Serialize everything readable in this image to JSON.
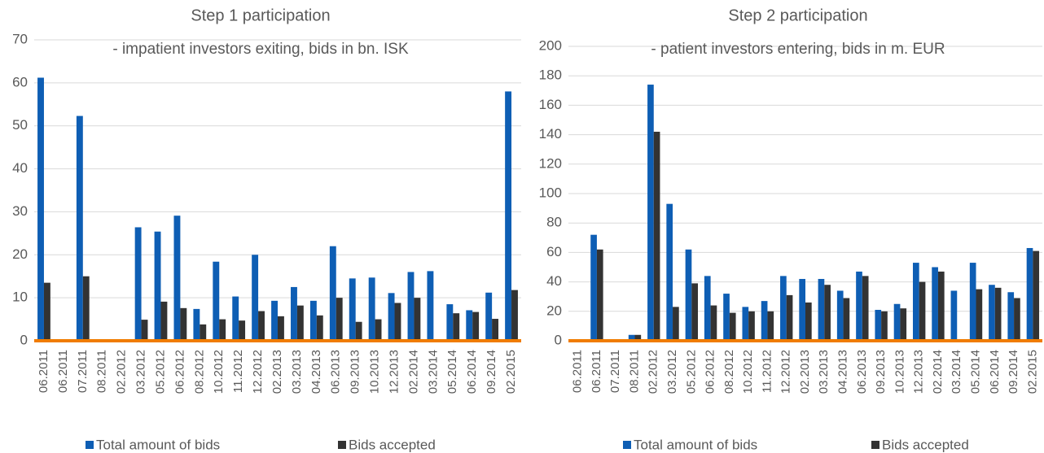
{
  "chart_data": [
    {
      "type": "bar",
      "title": "Step 1 participation",
      "subtitle": "- impatient investors exiting, bids in bn. ISK",
      "categories": [
        "06.2011",
        "06.2011",
        "07.2011",
        "08.2011",
        "02.2012",
        "03.2012",
        "05.2012",
        "06.2012",
        "08.2012",
        "10.2012",
        "11.2012",
        "12.2012",
        "02.2013",
        "03.2013",
        "04.2013",
        "06.2013",
        "09.2013",
        "10.2013",
        "12.2013",
        "02.2014",
        "03.2014",
        "05.2014",
        "06.2014",
        "09.2014",
        "02.2015"
      ],
      "series": [
        {
          "name": "Total amount of bids",
          "color": "#0e5eb4",
          "values": [
            61.2,
            0,
            52.3,
            0,
            0,
            26.4,
            25.4,
            29.1,
            7.4,
            18.4,
            10.3,
            20,
            9.3,
            12.5,
            9.3,
            22,
            14.5,
            14.7,
            11.1,
            16,
            16.2,
            8.5,
            7.1,
            11.2,
            58
          ]
        },
        {
          "name": "Bids accepted",
          "color": "#333333",
          "values": [
            13.5,
            0,
            15,
            0,
            0,
            4.9,
            9.1,
            7.6,
            3.8,
            5,
            4.7,
            6.9,
            5.7,
            8.2,
            5.9,
            10,
            4.4,
            5,
            8.8,
            10,
            0,
            6.4,
            6.7,
            5.1,
            11.8
          ]
        }
      ],
      "ylim": [
        0,
        70
      ],
      "yticks": [
        0,
        10,
        20,
        30,
        40,
        50,
        60,
        70
      ],
      "grid": true
    },
    {
      "type": "bar",
      "title": "Step 2 participation",
      "subtitle": "- patient investors entering, bids in m. EUR",
      "categories": [
        "06.2011",
        "06.2011",
        "07.2011",
        "08.2011",
        "02.2012",
        "03.2012",
        "05.2012",
        "06.2012",
        "08.2012",
        "10.2012",
        "11.2012",
        "12.2012",
        "02.2013",
        "03.2013",
        "04.2013",
        "06.2013",
        "09.2013",
        "10.2013",
        "12.2013",
        "02.2014",
        "03.2014",
        "05.2014",
        "06.2014",
        "09.2014",
        "02.2015"
      ],
      "series": [
        {
          "name": "Total amount of bids",
          "color": "#0e5eb4",
          "values": [
            0,
            72,
            0,
            4,
            174,
            93,
            62,
            44,
            32,
            23,
            27,
            44,
            42,
            42,
            34,
            47,
            21,
            25,
            53,
            50,
            34,
            53,
            38,
            33,
            63
          ]
        },
        {
          "name": "Bids accepted",
          "color": "#333333",
          "values": [
            0,
            62,
            0,
            4,
            142,
            23,
            39,
            24,
            19,
            20,
            20,
            31,
            26,
            38,
            29,
            44,
            20,
            22,
            40,
            47,
            0,
            35,
            36,
            29,
            61
          ]
        }
      ],
      "ylim": [
        0,
        200
      ],
      "yticks": [
        0,
        20,
        40,
        60,
        80,
        100,
        120,
        140,
        160,
        180,
        200
      ],
      "grid": true
    }
  ]
}
